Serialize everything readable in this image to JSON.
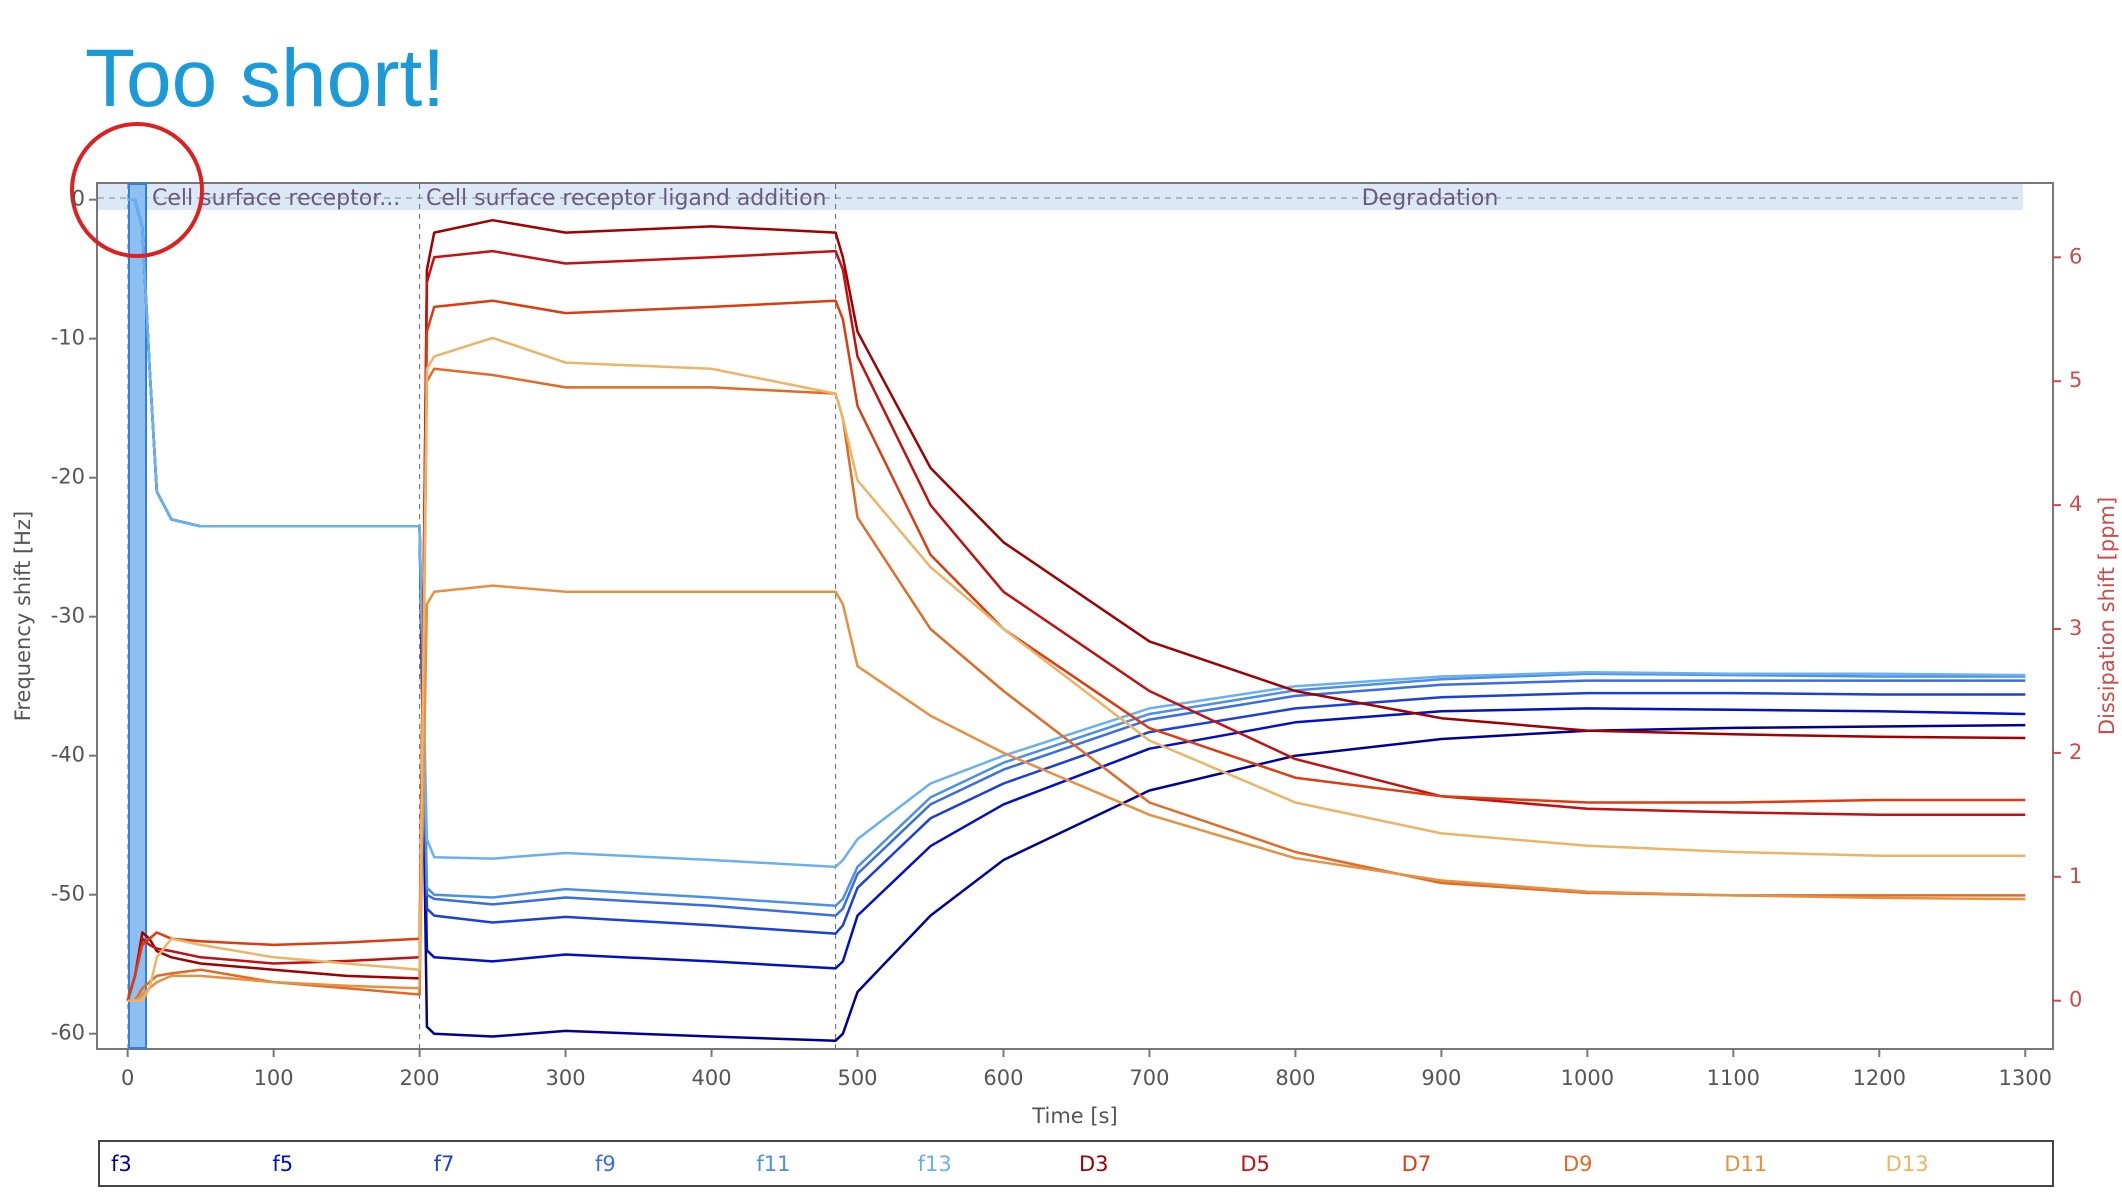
{
  "chart_data": {
    "type": "line",
    "title": "Too short!",
    "xlabel": "Time [s]",
    "ylabel": "Frequency shift [Hz]",
    "y2label": "Dissipation shift [ppm]",
    "annotations": [
      "Cell surface receptor...",
      "Cell surface receptor ligand addition",
      "Degradation"
    ],
    "x": [
      0,
      5,
      10,
      15,
      20,
      30,
      50,
      100,
      150,
      200,
      205,
      210,
      250,
      300,
      400,
      485,
      490,
      500,
      550,
      600,
      700,
      800,
      900,
      1000,
      1100,
      1200,
      1300
    ],
    "xlim": [
      -21,
      1319
    ],
    "xticks": [
      0,
      100,
      200,
      300,
      400,
      500,
      600,
      700,
      800,
      900,
      1000,
      1100,
      1200,
      1300
    ],
    "ylim": [
      -61.1,
      1.2
    ],
    "yticks": [
      -60,
      -50,
      -40,
      -30,
      -20,
      -10,
      0
    ],
    "y2lim": [
      -0.39,
      6.6
    ],
    "y2ticks": [
      0,
      1,
      2,
      3,
      4,
      5,
      6
    ],
    "legend": "bottom",
    "series": [
      {
        "name": "f3",
        "color": "#000096",
        "values": [
          0,
          0,
          -2,
          -12,
          -21,
          -23,
          -23.5,
          -23.5,
          -23.5,
          -23.5,
          -59.5,
          -60,
          -60.2,
          -59.8,
          -60.2,
          -60.5,
          -60,
          -57,
          -51.5,
          -47.5,
          -42.5,
          -40,
          -38.8,
          -38.2,
          -38,
          -37.9,
          -37.8
        ]
      },
      {
        "name": "f5",
        "color": "#0010c8",
        "values": [
          0,
          0,
          -2,
          -12,
          -21,
          -23,
          -23.5,
          -23.5,
          -23.5,
          -23.5,
          -54,
          -54.5,
          -54.8,
          -54.3,
          -54.8,
          -55.3,
          -54.8,
          -51.5,
          -46.5,
          -43.5,
          -39.5,
          -37.6,
          -36.8,
          -36.6,
          -36.7,
          -36.8,
          -37
        ]
      },
      {
        "name": "f7",
        "color": "#1a40dc",
        "values": [
          0,
          0,
          -2,
          -12,
          -21,
          -23,
          -23.5,
          -23.5,
          -23.5,
          -23.5,
          -51,
          -51.5,
          -52,
          -51.6,
          -52.2,
          -52.8,
          -52.2,
          -49.5,
          -44.5,
          -42,
          -38.3,
          -36.6,
          -35.8,
          -35.5,
          -35.5,
          -35.6,
          -35.6
        ]
      },
      {
        "name": "f9",
        "color": "#3a6ce4",
        "values": [
          0,
          0,
          -2,
          -12,
          -21,
          -23,
          -23.5,
          -23.5,
          -23.5,
          -23.5,
          -50,
          -50.3,
          -50.7,
          -50.2,
          -50.8,
          -51.5,
          -51,
          -48.5,
          -43.5,
          -41,
          -37.4,
          -35.7,
          -34.9,
          -34.6,
          -34.6,
          -34.6,
          -34.6
        ]
      },
      {
        "name": "f11",
        "color": "#4a90e8",
        "values": [
          0,
          0,
          -2,
          -12,
          -21,
          -23,
          -23.5,
          -23.5,
          -23.5,
          -23.5,
          -49.5,
          -50,
          -50.2,
          -49.6,
          -50.2,
          -50.8,
          -50.3,
          -48,
          -43,
          -40.5,
          -37,
          -35.3,
          -34.5,
          -34.1,
          -34.2,
          -34.3,
          -34.3
        ]
      },
      {
        "name": "f13",
        "color": "#6ab0f0",
        "values": [
          0,
          0,
          -2,
          -12,
          -21,
          -23,
          -23.5,
          -23.5,
          -23.5,
          -23.5,
          -46,
          -47.3,
          -47.4,
          -47,
          -47.5,
          -48,
          -47.5,
          -46,
          -42,
          -40,
          -36.6,
          -35,
          -34.3,
          -34,
          -34.1,
          -34.1,
          -34.2
        ]
      },
      {
        "name": "D3",
        "color": "#a00000",
        "axis": "y2",
        "values": [
          0,
          0.2,
          0.55,
          0.5,
          0.4,
          0.35,
          0.3,
          0.25,
          0.2,
          0.18,
          5.9,
          6.2,
          6.3,
          6.2,
          6.25,
          6.2,
          6,
          5.4,
          4.3,
          3.7,
          2.9,
          2.5,
          2.28,
          2.18,
          2.15,
          2.13,
          2.12
        ]
      },
      {
        "name": "D5",
        "color": "#c41010",
        "axis": "y2",
        "values": [
          0,
          0.2,
          0.5,
          0.45,
          0.42,
          0.4,
          0.35,
          0.3,
          0.32,
          0.35,
          5.8,
          6,
          6.05,
          5.95,
          6,
          6.05,
          5.9,
          5.2,
          4,
          3.3,
          2.5,
          1.95,
          1.65,
          1.55,
          1.52,
          1.5,
          1.5
        ]
      },
      {
        "name": "D7",
        "color": "#dc3c10",
        "axis": "y2",
        "values": [
          0,
          0.2,
          0.45,
          0.5,
          0.55,
          0.5,
          0.48,
          0.45,
          0.47,
          0.5,
          5.4,
          5.6,
          5.65,
          5.55,
          5.6,
          5.65,
          5.5,
          4.8,
          3.6,
          3,
          2.2,
          1.8,
          1.65,
          1.6,
          1.6,
          1.62,
          1.62
        ]
      },
      {
        "name": "D9",
        "color": "#e26a24",
        "axis": "y2",
        "values": [
          0,
          0,
          0.1,
          0.15,
          0.2,
          0.22,
          0.25,
          0.15,
          0.1,
          0.05,
          5,
          5.1,
          5.05,
          4.95,
          4.95,
          4.9,
          4.7,
          3.9,
          3,
          2.5,
          1.6,
          1.2,
          0.95,
          0.87,
          0.85,
          0.85,
          0.85
        ]
      },
      {
        "name": "D11",
        "color": "#e89040",
        "axis": "y2",
        "values": [
          0,
          0,
          0.05,
          0.1,
          0.15,
          0.2,
          0.2,
          0.15,
          0.12,
          0.1,
          3.2,
          3.3,
          3.35,
          3.3,
          3.3,
          3.3,
          3.2,
          2.7,
          2.3,
          2,
          1.5,
          1.15,
          0.97,
          0.88,
          0.85,
          0.83,
          0.82
        ]
      },
      {
        "name": "D13",
        "color": "#ecb464",
        "axis": "y2",
        "values": [
          0,
          0,
          0,
          0.1,
          0.35,
          0.5,
          0.45,
          0.35,
          0.3,
          0.25,
          5.1,
          5.2,
          5.35,
          5.15,
          5.1,
          4.9,
          4.7,
          4.2,
          3.5,
          3,
          2.1,
          1.6,
          1.35,
          1.25,
          1.2,
          1.17,
          1.17
        ]
      }
    ]
  }
}
